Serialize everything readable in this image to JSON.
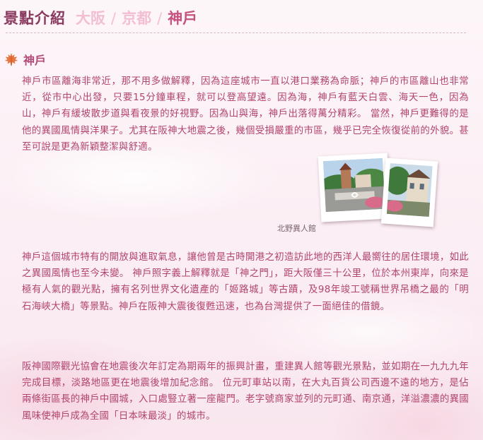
{
  "header": {
    "title": "景點介紹",
    "tabs": [
      {
        "label": "大阪",
        "active": false
      },
      {
        "label": "京都",
        "active": false
      },
      {
        "label": "神戶",
        "active": true
      }
    ],
    "separator": "/"
  },
  "section": {
    "icon": "maple-leaf-icon",
    "title": "神戶"
  },
  "paragraphs": [
    "神戶市區離海非常近，那不用多做解釋，因為這座城市一直以港口業務為命脈；神戶的市區離山也非常近，從市中心出發，只要15分鐘車程，就可以登高望遠。因為海，神戶有藍天白雲、海天一色，因為山，神戶有緩坡散步道與看夜景的好視野。因為山與海，神戶出落得萬分精彩。 當然，神戶更難得的是他的異國風情與洋果子。尤其在阪神大地震之後，幾個受損嚴重的市區，幾乎已完全恢復從前的外貌。甚至可說是更為新穎整潔與舒適。",
    "神戶這個城市特有的開放與進取氣息，讓他曾是古時開港之初造訪此地的西洋人最嚮往的居住環境，如此之異國風情也至今未變。 神戶照字義上解釋就是「神之門」，距大阪僅三十公里，位於本州東岸，向來是極有人氣的觀光點，擁有名列世界文化遺產的「姬路城」等古蹟，及98年竣工號稱世界吊橋之最的「明石海峽大橋」等景點。神戶在阪神大震後復甦迅速，也為台灣提供了一面絕佳的借鏡。",
    "阪神國際觀光協會在地震後次年訂定為期兩年的振興計畫，重建異人館等觀光景點，並如期在一九九九年完成目標，淡路地區更在地震後增加紀念館。 位元町車站以南，在大丸百貨公司西邊不遠的地方，是佔兩條街區長的神戶中國城，入口處豎立著一座龍門。老字號商家並列的元町通、南京通，洋溢濃濃的異國風味使神戶成為全國「日本味最淡」的城市。"
  ],
  "photos": {
    "caption": "北野異人館"
  },
  "colors": {
    "title": "#8a3a5e",
    "tab_inactive": "#f2bfd2",
    "tab_active": "#c6517f",
    "text": "#b2436f"
  }
}
